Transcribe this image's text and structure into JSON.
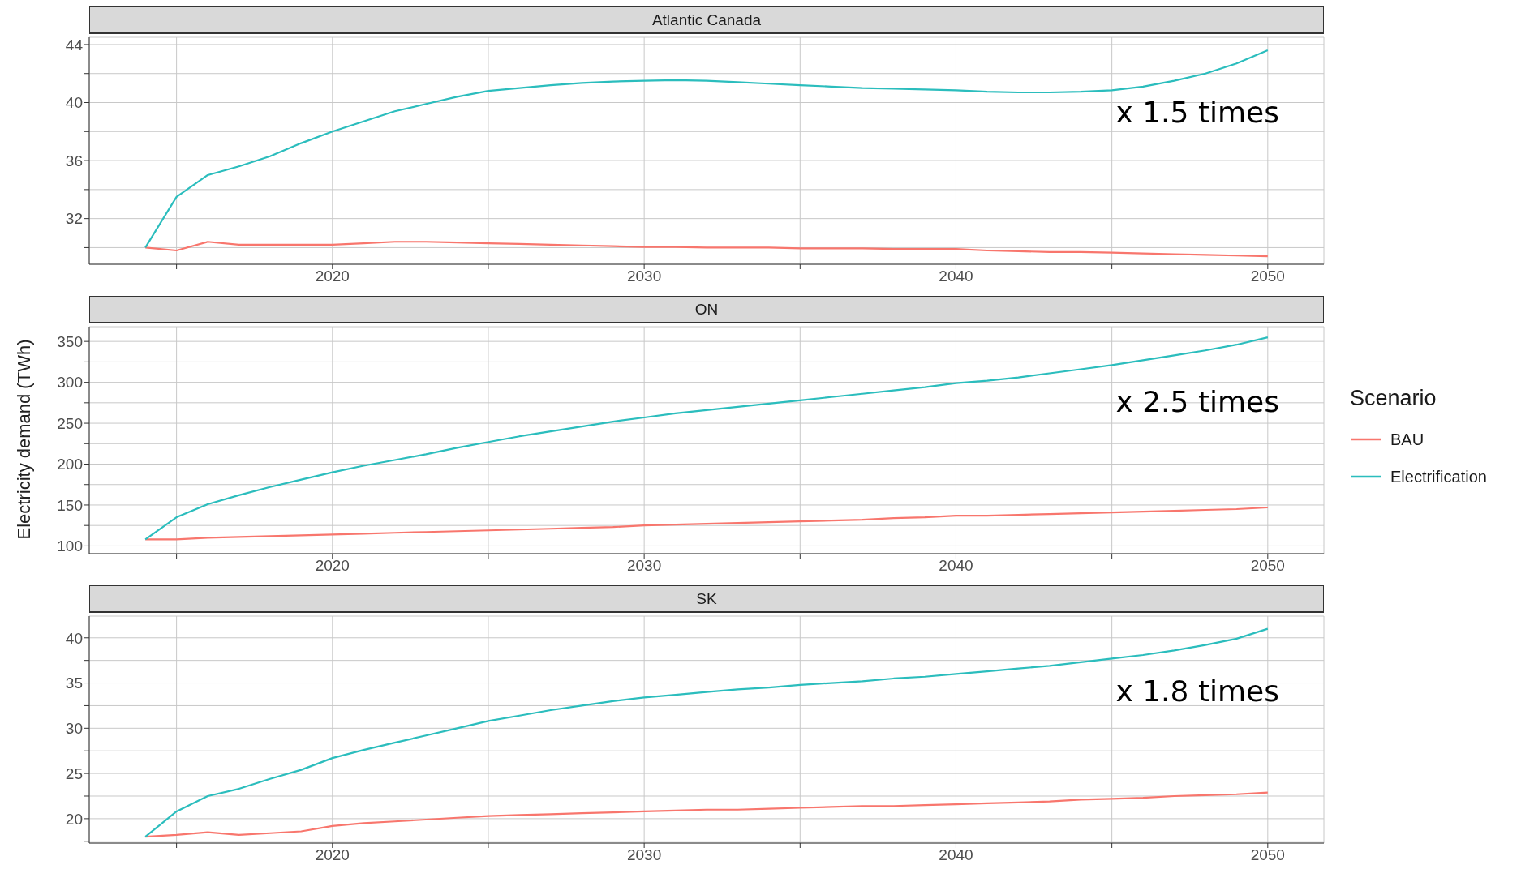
{
  "chart_data": [
    {
      "type": "line",
      "title": "Atlantic Canada",
      "x": [
        2014,
        2015,
        2016,
        2017,
        2018,
        2019,
        2020,
        2021,
        2022,
        2023,
        2024,
        2025,
        2026,
        2027,
        2028,
        2029,
        2030,
        2031,
        2032,
        2033,
        2034,
        2035,
        2036,
        2037,
        2038,
        2039,
        2040,
        2041,
        2042,
        2043,
        2044,
        2045,
        2046,
        2047,
        2048,
        2049,
        2050
      ],
      "series": [
        {
          "color": "#f8766d",
          "values": [
            30.0,
            29.8,
            30.4,
            30.2,
            30.2,
            30.2,
            30.2,
            30.3,
            30.4,
            30.4,
            30.35,
            30.3,
            30.25,
            30.2,
            30.15,
            30.1,
            30.05,
            30.05,
            30.0,
            30.0,
            30.0,
            29.95,
            29.95,
            29.95,
            29.9,
            29.9,
            29.9,
            29.8,
            29.75,
            29.7,
            29.7,
            29.65,
            29.6,
            29.55,
            29.5,
            29.45,
            29.4
          ]
        },
        {
          "color": "#2bbdbd",
          "values": [
            30.0,
            33.5,
            35.0,
            35.6,
            36.3,
            37.2,
            38.0,
            38.7,
            39.4,
            39.9,
            40.4,
            40.8,
            41.0,
            41.2,
            41.35,
            41.45,
            41.5,
            41.55,
            41.5,
            41.4,
            41.3,
            41.2,
            41.1,
            41.0,
            40.95,
            40.9,
            40.85,
            40.75,
            40.7,
            40.7,
            40.75,
            40.85,
            41.1,
            41.5,
            42.0,
            42.7,
            43.6
          ]
        }
      ],
      "xlim": [
        2012.2,
        2051.8
      ],
      "xticks": [
        {
          "value": 2015,
          "label": null
        },
        2020,
        {
          "value": 2025,
          "label": null
        },
        2030,
        {
          "value": 2035,
          "label": null
        },
        2040,
        {
          "value": 2045,
          "label": null
        },
        2050
      ],
      "ylim": [
        28.85,
        44.5
      ],
      "yticks": [
        {
          "value": 30,
          "label": null
        },
        32,
        {
          "value": 34,
          "label": null
        },
        36,
        {
          "value": 38,
          "label": null
        },
        40,
        {
          "value": 42,
          "label": null
        },
        44
      ],
      "grid": true,
      "legend": false,
      "annotations": [
        "x 1.5 times"
      ]
    },
    {
      "type": "line",
      "title": "ON",
      "ylabel": "Electricity demand (TWh)",
      "legend_title": "Scenario",
      "x": [
        2014,
        2015,
        2016,
        2017,
        2018,
        2019,
        2020,
        2021,
        2022,
        2023,
        2024,
        2025,
        2026,
        2027,
        2028,
        2029,
        2030,
        2031,
        2032,
        2033,
        2034,
        2035,
        2036,
        2037,
        2038,
        2039,
        2040,
        2041,
        2042,
        2043,
        2044,
        2045,
        2046,
        2047,
        2048,
        2049,
        2050
      ],
      "series": [
        {
          "name": "BAU",
          "color": "#f8766d",
          "values": [
            108,
            108,
            110,
            111,
            112,
            113,
            114,
            115,
            116,
            117,
            118,
            119,
            120,
            121,
            122,
            123,
            125,
            126,
            127,
            128,
            129,
            130,
            131,
            132,
            134,
            135,
            137,
            137,
            138,
            139,
            140,
            141,
            142,
            143,
            144,
            145,
            147
          ]
        },
        {
          "name": "Electrification",
          "color": "#2bbdbd",
          "values": [
            108,
            135,
            151,
            162,
            172,
            181,
            190,
            198,
            205,
            212,
            220,
            227,
            234,
            240,
            246,
            252,
            257,
            262,
            266,
            270,
            274,
            278,
            282,
            286,
            290,
            294,
            299,
            302,
            306,
            311,
            316,
            321,
            327,
            333,
            339,
            346,
            355
          ]
        }
      ],
      "xlim": [
        2012.2,
        2051.8
      ],
      "xticks": [
        {
          "value": 2015,
          "label": null
        },
        2020,
        {
          "value": 2025,
          "label": null
        },
        2030,
        {
          "value": 2035,
          "label": null
        },
        2040,
        {
          "value": 2045,
          "label": null
        },
        2050
      ],
      "ylim": [
        90.5,
        368
      ],
      "yticks": [
        100,
        {
          "value": 125,
          "label": null
        },
        150,
        {
          "value": 175,
          "label": null
        },
        200,
        {
          "value": 225,
          "label": null
        },
        250,
        {
          "value": 275,
          "label": null
        },
        300,
        {
          "value": 325,
          "label": null
        },
        350
      ],
      "grid": true,
      "legend": "right",
      "annotations": [
        "x 2.5 times"
      ]
    },
    {
      "type": "line",
      "title": "SK",
      "x": [
        2014,
        2015,
        2016,
        2017,
        2018,
        2019,
        2020,
        2021,
        2022,
        2023,
        2024,
        2025,
        2026,
        2027,
        2028,
        2029,
        2030,
        2031,
        2032,
        2033,
        2034,
        2035,
        2036,
        2037,
        2038,
        2039,
        2040,
        2041,
        2042,
        2043,
        2044,
        2045,
        2046,
        2047,
        2048,
        2049,
        2050
      ],
      "series": [
        {
          "color": "#f8766d",
          "values": [
            18.0,
            18.2,
            18.5,
            18.2,
            18.4,
            18.6,
            19.2,
            19.5,
            19.7,
            19.9,
            20.1,
            20.3,
            20.4,
            20.5,
            20.6,
            20.7,
            20.8,
            20.9,
            21.0,
            21.0,
            21.1,
            21.2,
            21.3,
            21.4,
            21.4,
            21.5,
            21.6,
            21.7,
            21.8,
            21.9,
            22.1,
            22.2,
            22.3,
            22.5,
            22.6,
            22.7,
            22.9
          ]
        },
        {
          "color": "#2bbdbd",
          "values": [
            18.0,
            20.8,
            22.5,
            23.3,
            24.4,
            25.4,
            26.7,
            27.6,
            28.4,
            29.2,
            30.0,
            30.8,
            31.4,
            32.0,
            32.5,
            33.0,
            33.4,
            33.7,
            34.0,
            34.3,
            34.5,
            34.8,
            35.0,
            35.2,
            35.5,
            35.7,
            36.0,
            36.3,
            36.6,
            36.9,
            37.3,
            37.7,
            38.1,
            38.6,
            39.2,
            39.9,
            41.0
          ]
        }
      ],
      "xlim": [
        2012.2,
        2051.8
      ],
      "xticks": [
        {
          "value": 2015,
          "label": null
        },
        2020,
        {
          "value": 2025,
          "label": null
        },
        2030,
        {
          "value": 2035,
          "label": null
        },
        2040,
        {
          "value": 2045,
          "label": null
        },
        2050
      ],
      "ylim": [
        17.3,
        42.4
      ],
      "yticks": [
        {
          "value": 17.5,
          "label": null
        },
        20,
        {
          "value": 22.5,
          "label": null
        },
        25,
        {
          "value": 27.5,
          "label": null
        },
        30,
        {
          "value": 32.5,
          "label": null
        },
        35,
        {
          "value": 37.5,
          "label": null
        },
        40
      ],
      "grid": true,
      "legend": false,
      "annotations": [
        "x 1.8 times"
      ]
    }
  ]
}
